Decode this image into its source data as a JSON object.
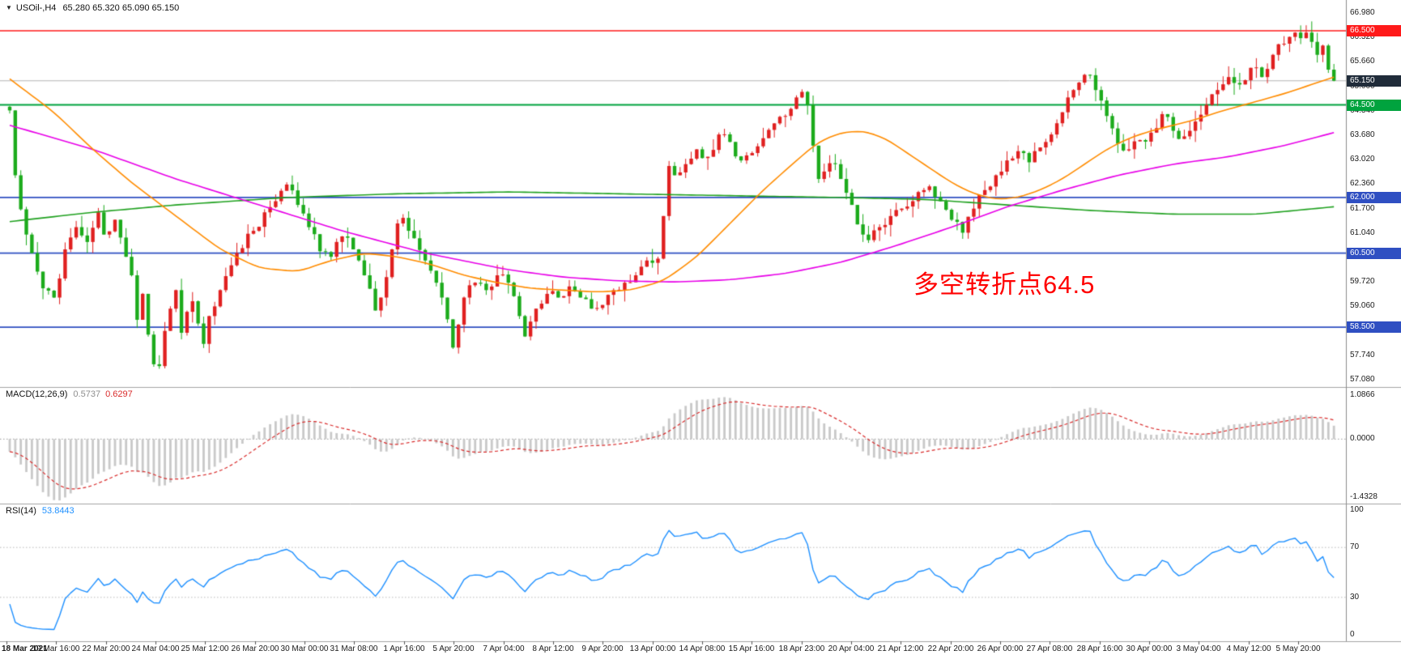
{
  "window": {
    "symbol_dropdown_icon": "▼",
    "symbol_period": "USOil-,H4",
    "ohlc_line": "65.280 65.320 65.090 65.150"
  },
  "annotation": {
    "text": "多空转折点64.5",
    "color": "#ff0000"
  },
  "macd_panel": {
    "name": "MACD(12,26,9)",
    "main_value": "0.5737",
    "signal_value": "0.6297",
    "scale_labels": [
      "1.0866",
      "0.0000",
      "-1.4328"
    ],
    "scale_max": 1.0866,
    "scale_min": -1.4328,
    "histogram_color": "#c9c9c9",
    "signal_color": "#d92b2b"
  },
  "rsi_panel": {
    "name": "RSI(14)",
    "value": "53.8443",
    "scale_labels": [
      "100",
      "70",
      "30",
      "0"
    ],
    "levels": [
      70,
      30
    ],
    "line_color": "#1e90ff"
  },
  "chart_data": {
    "type": "candlestick",
    "symbol": "USOil-",
    "timeframe": "H4",
    "last_ohlc": {
      "open": 65.28,
      "high": 65.32,
      "low": 65.09,
      "close": 65.15
    },
    "visible_bars": 240,
    "candle_colors": {
      "up": "#e02020",
      "down": "#1cab1c"
    },
    "y_axis_labels": [
      "66.980",
      "66.320",
      "65.660",
      "65.000",
      "64.340",
      "63.680",
      "63.020",
      "62.360",
      "61.700",
      "61.040",
      "60.380",
      "59.720",
      "59.060",
      "58.400",
      "57.740",
      "57.080"
    ],
    "horizontal_levels": [
      {
        "price": 66.5,
        "label": "66.500",
        "line_color": "#ff1a1a",
        "badge_color": "#ff1a1a",
        "width": 1.6
      },
      {
        "price": 65.15,
        "label": "65.150",
        "line_color": "#b3b3b3",
        "badge_color": "#202c3a",
        "width": 1.0
      },
      {
        "price": 64.5,
        "label": "64.500",
        "line_color": "#00a33e",
        "badge_color": "#00a33e",
        "width": 1.8
      },
      {
        "price": 62.0,
        "label": "62.000",
        "line_color": "#2f4fc2",
        "badge_color": "#2f4fc2",
        "width": 1.8
      },
      {
        "price": 60.5,
        "label": "60.500",
        "line_color": "#2f4fc2",
        "badge_color": "#2f4fc2",
        "width": 1.8
      },
      {
        "price": 58.5,
        "label": "58.500",
        "line_color": "#2f4fc2",
        "badge_color": "#2f4fc2",
        "width": 1.8
      }
    ],
    "prehistory_anchors": [
      [
        -60,
        66.3
      ],
      [
        -45,
        66.55
      ],
      [
        -30,
        65.9
      ],
      [
        -18,
        65.2
      ],
      [
        -8,
        64.7
      ],
      [
        -1,
        64.45
      ]
    ],
    "close_path_anchors": [
      [
        0,
        64.35
      ],
      [
        1,
        62.6
      ],
      [
        3,
        61.0
      ],
      [
        5,
        60.0
      ],
      [
        6,
        59.55
      ],
      [
        8,
        59.3
      ],
      [
        10,
        60.6
      ],
      [
        12,
        61.2
      ],
      [
        14,
        60.8
      ],
      [
        16,
        61.6
      ],
      [
        17,
        61.0
      ],
      [
        19,
        61.4
      ],
      [
        21,
        60.4
      ],
      [
        22,
        59.9
      ],
      [
        23,
        58.7
      ],
      [
        24,
        59.4
      ],
      [
        25,
        58.3
      ],
      [
        26,
        57.5
      ],
      [
        27,
        57.45
      ],
      [
        28,
        58.4
      ],
      [
        29,
        59.0
      ],
      [
        30,
        59.5
      ],
      [
        31,
        58.35
      ],
      [
        33,
        59.2
      ],
      [
        34,
        58.6
      ],
      [
        35,
        58.05
      ],
      [
        36,
        58.8
      ],
      [
        38,
        59.5
      ],
      [
        41,
        60.5
      ],
      [
        44,
        61.1
      ],
      [
        46,
        61.6
      ],
      [
        48,
        61.9
      ],
      [
        50,
        62.35
      ],
      [
        52,
        61.8
      ],
      [
        54,
        61.2
      ],
      [
        56,
        60.55
      ],
      [
        58,
        60.4
      ],
      [
        60,
        60.95
      ],
      [
        62,
        60.6
      ],
      [
        64,
        59.9
      ],
      [
        66,
        58.95
      ],
      [
        67,
        59.3
      ],
      [
        69,
        60.6
      ],
      [
        70,
        61.3
      ],
      [
        71,
        61.45
      ],
      [
        73,
        60.9
      ],
      [
        75,
        60.3
      ],
      [
        77,
        59.7
      ],
      [
        78,
        59.3
      ],
      [
        80,
        57.95
      ],
      [
        82,
        59.3
      ],
      [
        84,
        59.7
      ],
      [
        86,
        59.5
      ],
      [
        88,
        59.9
      ],
      [
        90,
        59.7
      ],
      [
        92,
        58.8
      ],
      [
        93,
        58.25
      ],
      [
        95,
        59.0
      ],
      [
        97,
        59.4
      ],
      [
        99,
        59.3
      ],
      [
        101,
        59.6
      ],
      [
        103,
        59.3
      ],
      [
        105,
        59.0
      ],
      [
        107,
        59.1
      ],
      [
        109,
        59.5
      ],
      [
        111,
        59.7
      ],
      [
        113,
        59.9
      ],
      [
        115,
        60.3
      ],
      [
        117,
        60.35
      ],
      [
        118,
        61.5
      ],
      [
        119,
        62.85
      ],
      [
        120,
        62.6
      ],
      [
        122,
        62.9
      ],
      [
        124,
        63.3
      ],
      [
        126,
        63.1
      ],
      [
        128,
        63.7
      ],
      [
        130,
        63.5
      ],
      [
        132,
        63.0
      ],
      [
        134,
        63.2
      ],
      [
        136,
        63.6
      ],
      [
        138,
        64.0
      ],
      [
        140,
        64.2
      ],
      [
        142,
        64.7
      ],
      [
        143,
        64.85
      ],
      [
        144,
        64.5
      ],
      [
        145,
        63.4
      ],
      [
        146,
        62.5
      ],
      [
        147,
        62.7
      ],
      [
        149,
        62.9
      ],
      [
        150,
        62.5
      ],
      [
        152,
        61.8
      ],
      [
        154,
        61.0
      ],
      [
        155,
        60.85
      ],
      [
        157,
        61.2
      ],
      [
        159,
        61.5
      ],
      [
        161,
        61.7
      ],
      [
        163,
        61.9
      ],
      [
        165,
        62.2
      ],
      [
        166,
        62.3
      ],
      [
        168,
        61.9
      ],
      [
        170,
        61.4
      ],
      [
        172,
        61.05
      ],
      [
        174,
        61.7
      ],
      [
        176,
        62.2
      ],
      [
        178,
        62.6
      ],
      [
        180,
        63.0
      ],
      [
        182,
        63.25
      ],
      [
        184,
        62.95
      ],
      [
        186,
        63.35
      ],
      [
        188,
        63.7
      ],
      [
        190,
        64.3
      ],
      [
        192,
        64.9
      ],
      [
        193,
        65.1
      ],
      [
        195,
        65.3
      ],
      [
        196,
        64.9
      ],
      [
        198,
        64.2
      ],
      [
        200,
        63.45
      ],
      [
        202,
        63.3
      ],
      [
        204,
        63.55
      ],
      [
        206,
        63.75
      ],
      [
        208,
        64.25
      ],
      [
        210,
        63.8
      ],
      [
        212,
        63.65
      ],
      [
        214,
        64.05
      ],
      [
        216,
        64.5
      ],
      [
        218,
        64.9
      ],
      [
        220,
        65.25
      ],
      [
        222,
        65.05
      ],
      [
        224,
        65.5
      ],
      [
        226,
        65.25
      ],
      [
        228,
        65.85
      ],
      [
        230,
        66.15
      ],
      [
        232,
        66.45
      ],
      [
        233,
        66.3
      ],
      [
        234,
        66.45
      ],
      [
        235,
        66.2
      ],
      [
        236,
        65.85
      ],
      [
        237,
        66.1
      ],
      [
        238,
        65.45
      ],
      [
        239,
        65.15
      ]
    ],
    "moving_averages": [
      {
        "name": "ma-long-green",
        "color": "#1fa11f",
        "anchors": [
          [
            0,
            61.35
          ],
          [
            15,
            61.6
          ],
          [
            30,
            61.8
          ],
          [
            50,
            62.0
          ],
          [
            70,
            62.1
          ],
          [
            90,
            62.15
          ],
          [
            110,
            62.1
          ],
          [
            130,
            62.05
          ],
          [
            150,
            62.0
          ],
          [
            165,
            61.95
          ],
          [
            180,
            61.8
          ],
          [
            195,
            61.65
          ],
          [
            210,
            61.55
          ],
          [
            225,
            61.55
          ],
          [
            239,
            61.75
          ]
        ]
      },
      {
        "name": "ma-slow-magenta",
        "color": "#e800e8",
        "anchors": [
          [
            0,
            63.95
          ],
          [
            15,
            63.3
          ],
          [
            30,
            62.5
          ],
          [
            45,
            61.8
          ],
          [
            60,
            61.1
          ],
          [
            75,
            60.5
          ],
          [
            90,
            60.05
          ],
          [
            100,
            59.85
          ],
          [
            110,
            59.75
          ],
          [
            120,
            59.72
          ],
          [
            130,
            59.78
          ],
          [
            140,
            59.95
          ],
          [
            150,
            60.25
          ],
          [
            160,
            60.7
          ],
          [
            170,
            61.2
          ],
          [
            180,
            61.75
          ],
          [
            190,
            62.2
          ],
          [
            200,
            62.6
          ],
          [
            210,
            62.9
          ],
          [
            220,
            63.1
          ],
          [
            230,
            63.4
          ],
          [
            239,
            63.75
          ]
        ]
      },
      {
        "name": "ma-fast-orange",
        "color": "#ff8c00",
        "anchors": [
          [
            0,
            65.2
          ],
          [
            8,
            64.3
          ],
          [
            15,
            63.3
          ],
          [
            22,
            62.4
          ],
          [
            30,
            61.5
          ],
          [
            38,
            60.6
          ],
          [
            45,
            60.1
          ],
          [
            52,
            60.0
          ],
          [
            58,
            60.3
          ],
          [
            64,
            60.5
          ],
          [
            70,
            60.4
          ],
          [
            76,
            60.2
          ],
          [
            82,
            59.9
          ],
          [
            88,
            59.7
          ],
          [
            94,
            59.55
          ],
          [
            100,
            59.5
          ],
          [
            106,
            59.45
          ],
          [
            112,
            59.5
          ],
          [
            118,
            59.75
          ],
          [
            124,
            60.4
          ],
          [
            130,
            61.3
          ],
          [
            136,
            62.2
          ],
          [
            142,
            63.0
          ],
          [
            146,
            63.5
          ],
          [
            150,
            63.75
          ],
          [
            154,
            63.8
          ],
          [
            158,
            63.6
          ],
          [
            162,
            63.2
          ],
          [
            166,
            62.8
          ],
          [
            170,
            62.4
          ],
          [
            174,
            62.1
          ],
          [
            178,
            61.95
          ],
          [
            182,
            62.0
          ],
          [
            186,
            62.2
          ],
          [
            190,
            62.5
          ],
          [
            194,
            62.9
          ],
          [
            198,
            63.3
          ],
          [
            202,
            63.6
          ],
          [
            206,
            63.8
          ],
          [
            210,
            63.95
          ],
          [
            214,
            64.1
          ],
          [
            218,
            64.3
          ],
          [
            224,
            64.55
          ],
          [
            230,
            64.8
          ],
          [
            235,
            65.05
          ],
          [
            239,
            65.25
          ]
        ]
      }
    ],
    "time_axis": [
      "18 Mar 2021",
      "19 Mar 16:00",
      "22 Mar 20:00",
      "24 Mar 04:00",
      "25 Mar 12:00",
      "26 Mar 20:00",
      "30 Mar 00:00",
      "31 Mar 08:00",
      "1 Apr 16:00",
      "5 Apr 20:00",
      "7 Apr 04:00",
      "8 Apr 12:00",
      "9 Apr 20:00",
      "13 Apr 00:00",
      "14 Apr 08:00",
      "15 Apr 16:00",
      "18 Apr 23:00",
      "20 Apr 04:00",
      "21 Apr 12:00",
      "22 Apr 20:00",
      "26 Apr 00:00",
      "27 Apr 08:00",
      "28 Apr 16:00",
      "30 Apr 00:00",
      "3 May 04:00",
      "4 May 12:00",
      "5 May 20:00"
    ]
  }
}
